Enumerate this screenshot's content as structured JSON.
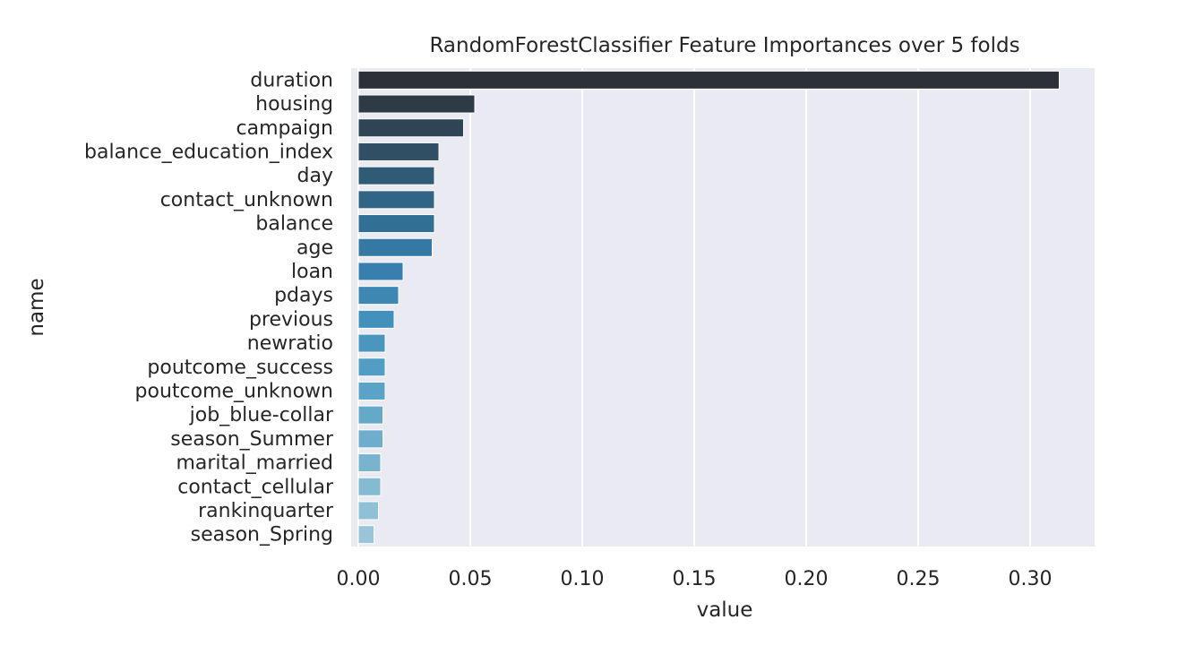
{
  "chart_data": {
    "type": "bar",
    "orientation": "horizontal",
    "title": "RandomForestClassifier Feature Importances over 5 folds",
    "xlabel": "value",
    "ylabel": "name",
    "xlim": [
      0,
      0.328
    ],
    "xticks": [
      0.0,
      0.05,
      0.1,
      0.15,
      0.2,
      0.25,
      0.3
    ],
    "xtick_labels": [
      "0.00",
      "0.05",
      "0.10",
      "0.15",
      "0.20",
      "0.25",
      "0.30"
    ],
    "grid": true,
    "background": "#eaeaf2",
    "colors": [
      "#2b3137",
      "#2e3a46",
      "#2f4556",
      "#304f65",
      "#305b77",
      "#316586",
      "#326f95",
      "#3578a3",
      "#397fad",
      "#3d87b3",
      "#4290bc",
      "#4a96bf",
      "#529dc3",
      "#5ba3c6",
      "#65a9c9",
      "#6eaecc",
      "#79b4cf",
      "#84bad2",
      "#8fc0d5",
      "#9ac5d8"
    ],
    "categories": [
      "duration",
      "housing",
      "campaign",
      "balance_education_index",
      "day",
      "contact_unknown",
      "balance",
      "age",
      "loan",
      "pdays",
      "previous",
      "newratio",
      "poutcome_success",
      "poutcome_unknown",
      "job_blue-collar",
      "season_Summer",
      "marital_married",
      "contact_cellular",
      "rankinquarter",
      "season_Spring"
    ],
    "values": [
      0.313,
      0.052,
      0.047,
      0.036,
      0.034,
      0.034,
      0.034,
      0.033,
      0.02,
      0.018,
      0.016,
      0.012,
      0.012,
      0.012,
      0.011,
      0.011,
      0.01,
      0.01,
      0.009,
      0.007
    ]
  }
}
